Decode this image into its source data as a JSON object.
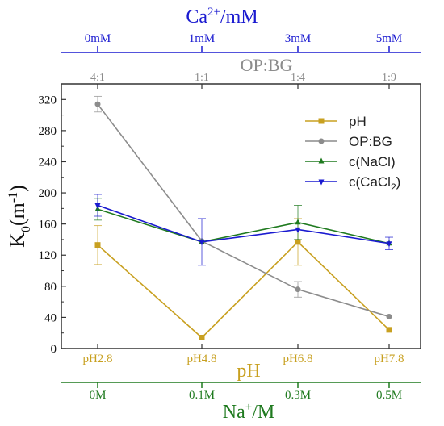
{
  "chart_data": {
    "type": "line",
    "x_positions": [
      1,
      2,
      3,
      4
    ],
    "ylabel_main": "K",
    "ylabel_sub": "0",
    "ylabel_rest": "(m",
    "ylabel_sup": "-1",
    "ylabel_end": ")",
    "ylim": [
      0,
      340
    ],
    "yticks": [
      "0",
      "40",
      "80",
      "120",
      "160",
      "200",
      "240",
      "280",
      "320"
    ],
    "ytick_values": [
      0,
      40,
      80,
      120,
      160,
      200,
      240,
      280,
      320
    ],
    "axes": {
      "ph": {
        "title": "pH",
        "ticks": [
          "pH2.8",
          "pH4.8",
          "pH6.8",
          "pH7.8"
        ],
        "color": "#c8a020"
      },
      "na": {
        "title_main": "Na",
        "title_sup": "+",
        "title_rest": "/M",
        "ticks": [
          "0M",
          "0.1M",
          "0.3M",
          "0.5M"
        ],
        "color": "#1f7a1f"
      },
      "ca": {
        "title_main": "Ca",
        "title_sup": "2+",
        "title_rest": "/mM",
        "ticks": [
          "0mM",
          "1mM",
          "3mM",
          "5mM"
        ],
        "color": "#1a1ad0"
      },
      "opbg": {
        "title": "OP:BG",
        "ticks": [
          "4:1",
          "1:1",
          "1:4",
          "1:9"
        ],
        "color": "#8c8c8c"
      }
    },
    "series": [
      {
        "name": "pH",
        "legend": "pH",
        "color": "#c8a020",
        "marker": "square",
        "values": [
          133,
          14,
          137,
          24
        ],
        "errors": [
          25,
          0,
          30,
          0
        ]
      },
      {
        "name": "OP:BG",
        "legend": "OP:BG",
        "color": "#8c8c8c",
        "marker": "circle",
        "values": [
          314,
          138,
          76,
          41
        ],
        "errors": [
          10,
          0,
          10,
          0
        ]
      },
      {
        "name": "c(NaCl)",
        "legend": "c(NaCl)",
        "color": "#1f7a1f",
        "marker": "triangle-up",
        "values": [
          179,
          137,
          162,
          135
        ],
        "errors": [
          14,
          0,
          22,
          0
        ]
      },
      {
        "name": "c(CaCl2)",
        "legend_main": "c(CaCl",
        "legend_sub": "2",
        "legend_end": ")",
        "color": "#1a1ad0",
        "marker": "triangle-down",
        "values": [
          184,
          137,
          153,
          135
        ],
        "errors": [
          14,
          30,
          0,
          8
        ]
      }
    ]
  }
}
